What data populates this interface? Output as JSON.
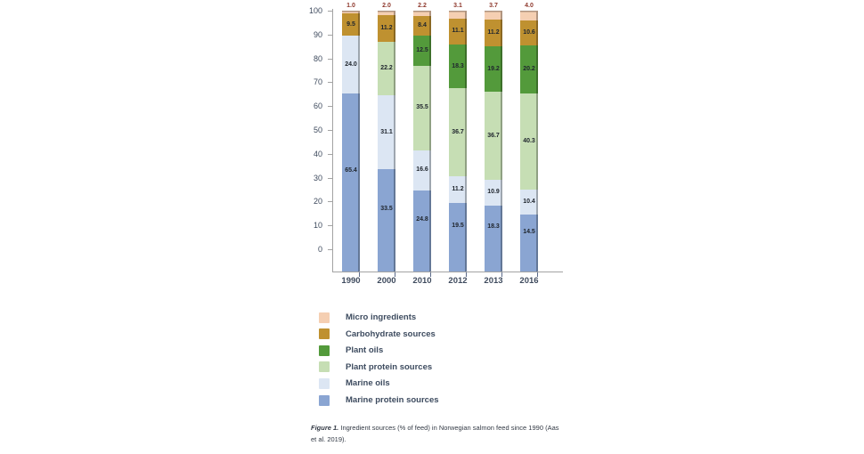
{
  "chart_data": {
    "type": "bar",
    "stacked": true,
    "title": "",
    "categories": [
      "1990",
      "2000",
      "2010",
      "2012",
      "2013",
      "2016"
    ],
    "series": [
      {
        "name": "Marine protein sources",
        "color": "#8aa5d2",
        "values": [
          65.4,
          33.5,
          24.8,
          19.5,
          18.3,
          14.5
        ]
      },
      {
        "name": "Marine oils",
        "color": "#dce6f3",
        "values": [
          24.0,
          31.1,
          16.6,
          11.2,
          10.9,
          10.4
        ]
      },
      {
        "name": "Plant protein sources",
        "color": "#c6deb4",
        "values": [
          0,
          22.2,
          35.5,
          36.7,
          36.7,
          40.3
        ]
      },
      {
        "name": "Plant oils",
        "color": "#539a3b",
        "values": [
          0,
          0,
          12.5,
          18.3,
          19.2,
          20.2
        ]
      },
      {
        "name": "Carbohydrate sources",
        "color": "#bf9130",
        "values": [
          9.5,
          11.2,
          8.4,
          11.1,
          11.2,
          10.6
        ]
      },
      {
        "name": "Micro ingredients",
        "color": "#f5cfb2",
        "values": [
          1.0,
          2.0,
          2.2,
          3.1,
          3.7,
          4.0
        ]
      }
    ],
    "ylim": [
      0,
      100
    ],
    "yticks": [
      0,
      10,
      20,
      30,
      40,
      50,
      60,
      70,
      80,
      90,
      100
    ],
    "grid": false,
    "legend_position": "bottom-left",
    "value_label_color": "#20262e",
    "top_label_series": "Micro ingredients",
    "top_label_color": "#8e382c",
    "axis_color": "#a3a3a3",
    "tick_label_color": "#3f4b5e"
  },
  "legend": {
    "items": [
      "Micro ingredients",
      "Carbohydrate sources",
      "Plant oils",
      "Plant protein sources",
      "Marine oils",
      "Marine protein sources"
    ]
  },
  "caption": {
    "prefix": "Figure 1.",
    "line1": "Ingredient sources (% of feed) in Norwegian salmon feed since 1990 (Aas",
    "line2": "et al. 2019)."
  }
}
